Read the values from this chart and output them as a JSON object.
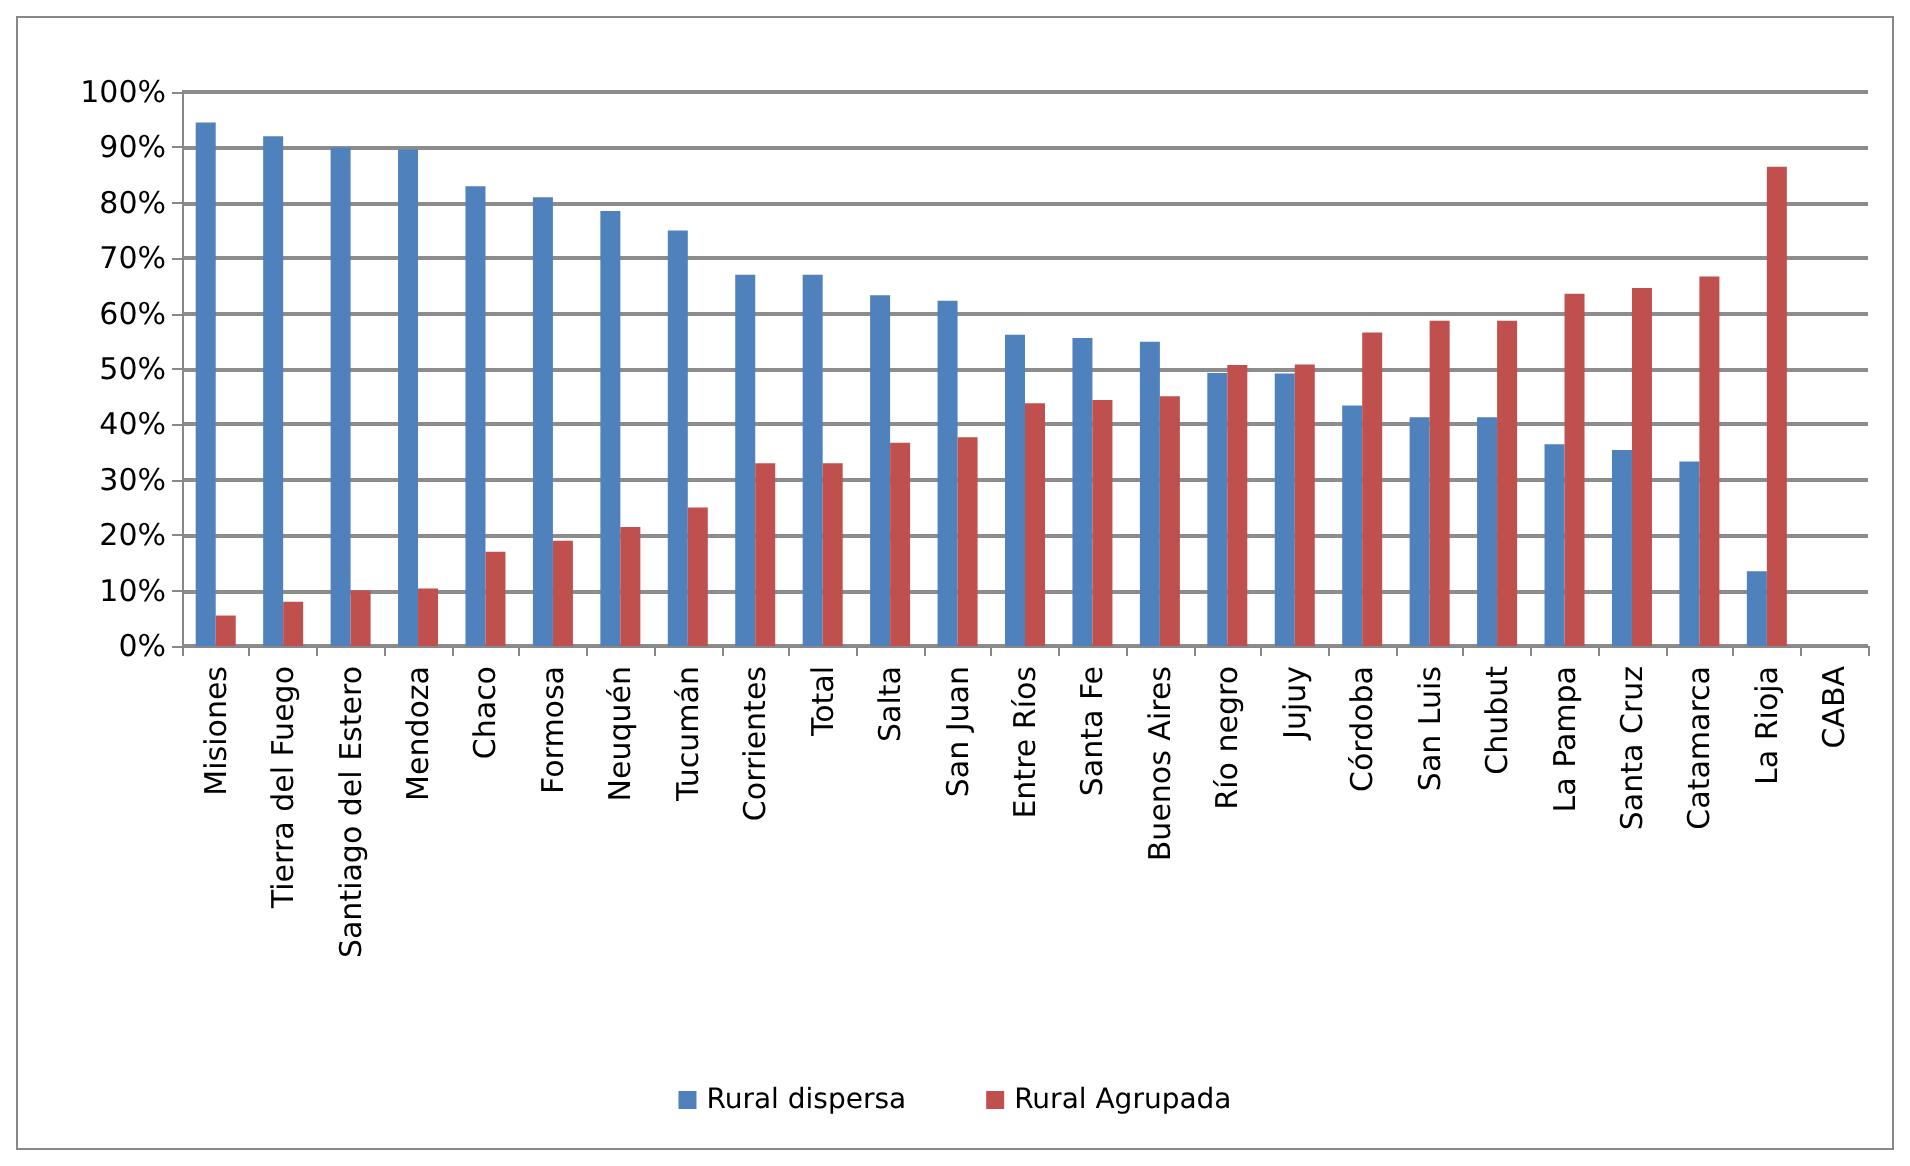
{
  "chart_data": {
    "type": "bar",
    "categories": [
      "Misiones",
      "Tierra del Fuego",
      "Santiago del Estero",
      "Mendoza",
      "Chaco",
      "Formosa",
      "Neuquén",
      "Tucumán",
      "Corrientes",
      "Total",
      "Salta",
      "San Juan",
      "Entre Ríos",
      "Santa Fe",
      "Buenos Aires",
      "Río negro",
      "Jujuy",
      "Córdoba",
      "San Luis",
      "Chubut",
      "La Pampa",
      "Santa Cruz",
      "Catamarca",
      "La Rioja",
      "CABA"
    ],
    "series": [
      {
        "name": "Rural dispersa",
        "color": "#4f81bd",
        "values": [
          94.5,
          92,
          90,
          89.6,
          83,
          81,
          78.5,
          75,
          67,
          67,
          63.3,
          62.3,
          56.2,
          55.6,
          54.9,
          49.3,
          49.2,
          43.4,
          41.3,
          41.3,
          36.4,
          35.4,
          33.3,
          13.5,
          null
        ]
      },
      {
        "name": "Rural Agrupada",
        "color": "#c0504d",
        "values": [
          5.5,
          8,
          10,
          10.4,
          17,
          19,
          21.5,
          25,
          33,
          33,
          36.7,
          37.7,
          43.8,
          44.4,
          45.1,
          50.7,
          50.8,
          56.6,
          58.7,
          58.7,
          63.6,
          64.6,
          66.7,
          86.5,
          null
        ]
      }
    ],
    "ylim": [
      0,
      100
    ],
    "yticks": [
      {
        "value": 0,
        "label": "0%"
      },
      {
        "value": 10,
        "label": "10%"
      },
      {
        "value": 20,
        "label": "20%"
      },
      {
        "value": 30,
        "label": "30%"
      },
      {
        "value": 40,
        "label": "40%"
      },
      {
        "value": 50,
        "label": "50%"
      },
      {
        "value": 60,
        "label": "60%"
      },
      {
        "value": 70,
        "label": "70%"
      },
      {
        "value": 80,
        "label": "80%"
      },
      {
        "value": 90,
        "label": "90%"
      },
      {
        "value": 100,
        "label": "100%"
      }
    ],
    "grid": "y",
    "legend": "bottom"
  }
}
